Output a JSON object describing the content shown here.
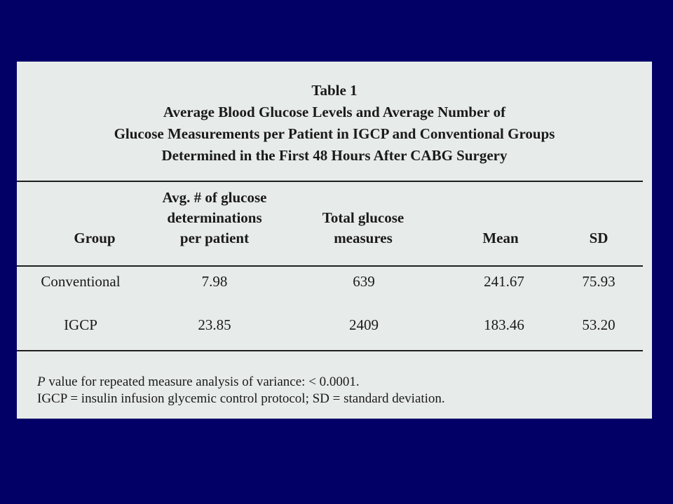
{
  "table": {
    "title_lines": [
      "Table 1",
      "Average Blood Glucose Levels and Average Number of",
      "Glucose Measurements per Patient in IGCP and Conventional Groups",
      "Determined in the First 48 Hours After CABG Surgery"
    ],
    "columns": {
      "group": [
        "Group"
      ],
      "avg": [
        "Avg. # of glucose",
        "determinations",
        "per patient"
      ],
      "total": [
        "Total glucose",
        "measures"
      ],
      "mean": [
        "Mean"
      ],
      "sd": [
        "SD"
      ]
    },
    "rows": [
      {
        "group": "Conventional",
        "avg": "7.98",
        "total": "639",
        "mean": "241.67",
        "sd": "75.93"
      },
      {
        "group": "IGCP",
        "avg": "23.85",
        "total": "2409",
        "mean": "183.46",
        "sd": "53.20"
      }
    ],
    "footnotes": {
      "p_italic": "P",
      "p_rest": " value for repeated measure analysis of variance: < 0.0001.",
      "abbrev": "IGCP = insulin infusion glycemic control protocol; SD = standard deviation."
    }
  }
}
